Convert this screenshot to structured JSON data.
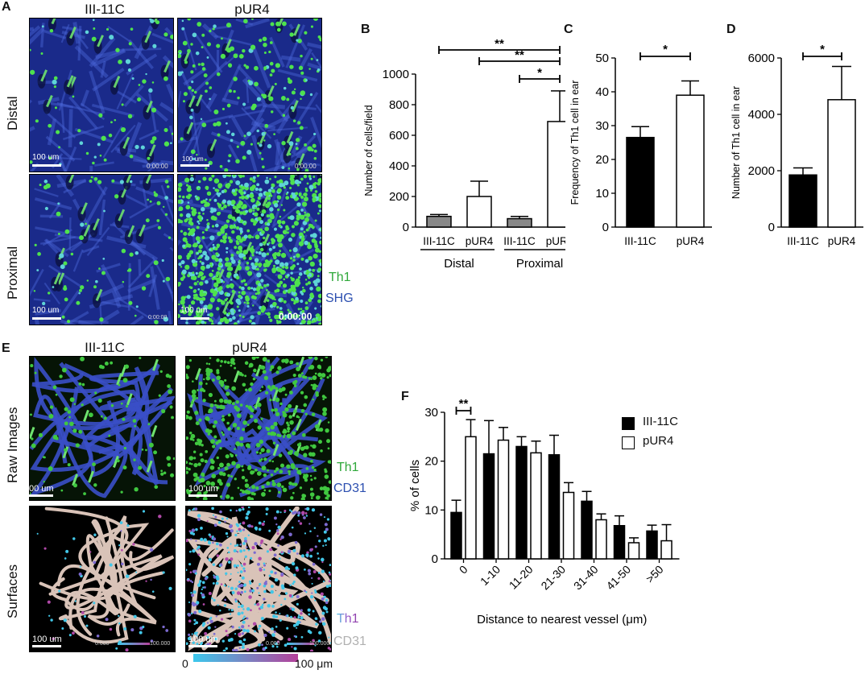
{
  "panel_labels": {
    "A": "A",
    "B": "B",
    "C": "C",
    "D": "D",
    "E": "E",
    "F": "F"
  },
  "panel_a": {
    "col_titles": [
      "III-11C",
      "pUR4"
    ],
    "row_titles": [
      "Distal",
      "Proximal"
    ],
    "scale_text": "100 um",
    "timestamp": "0:00:00",
    "channel_labels": [
      {
        "text": "Th1",
        "color": "#2fa83a"
      },
      {
        "text": "SHG",
        "color": "#2c4fb0"
      }
    ]
  },
  "panel_e": {
    "col_titles": [
      "III-11C",
      "pUR4"
    ],
    "row_titles": [
      "Raw Images",
      "Surfaces"
    ],
    "scale_texts": [
      "00 um",
      "100 um",
      "100 um",
      "100 um"
    ],
    "colorbar_small": {
      "min": "0.000",
      "max": "100.000"
    },
    "channel_labels_raw": [
      {
        "text": "Th1",
        "color": "#2fa83a"
      },
      {
        "text": "CD31",
        "color": "#2c4fb0"
      }
    ],
    "channel_labels_surface": [
      {
        "text": "Th1",
        "colors": [
          "#49c6e5",
          "#9b4fc8",
          "#8b3aa0"
        ]
      },
      {
        "text": "CD31",
        "color": "#b0b0b0"
      }
    ],
    "colorbar": {
      "min_label": "0",
      "max_label": "100 μm",
      "from": "#3cc8ec",
      "to": "#b5419a"
    }
  },
  "chart_data": [
    {
      "panel": "B",
      "type": "bar",
      "categories": [
        "III-11C",
        "pUR4",
        "III-11C",
        "pUR4"
      ],
      "groups": [
        "Distal",
        "Proximal"
      ],
      "values": [
        70,
        200,
        55,
        690
      ],
      "errors": [
        12,
        100,
        15,
        200
      ],
      "fills": [
        "#888888",
        "#ffffff",
        "#888888",
        "#ffffff"
      ],
      "ylabel": "Number of cells/field",
      "ylim": [
        0,
        1000
      ],
      "yticks": [
        0,
        200,
        400,
        600,
        800,
        1000
      ],
      "significance": [
        {
          "from": 0,
          "to": 3,
          "label": "**"
        },
        {
          "from": 1,
          "to": 3,
          "label": "**"
        },
        {
          "from": 2,
          "to": 3,
          "label": "*"
        }
      ]
    },
    {
      "panel": "C",
      "type": "bar",
      "categories": [
        "III-11C",
        "pUR4"
      ],
      "values": [
        26.5,
        39
      ],
      "errors": [
        3.2,
        4.2
      ],
      "fills": [
        "#000000",
        "#ffffff"
      ],
      "ylabel": "Frequency of Th1 cell in ear",
      "ylim": [
        0,
        50
      ],
      "yticks": [
        0,
        10,
        20,
        30,
        40,
        50
      ],
      "significance": [
        {
          "from": 0,
          "to": 1,
          "label": "*"
        }
      ]
    },
    {
      "panel": "D",
      "type": "bar",
      "categories": [
        "III-11C",
        "pUR4"
      ],
      "values": [
        1850,
        4520
      ],
      "errors": [
        250,
        1180
      ],
      "fills": [
        "#000000",
        "#ffffff"
      ],
      "ylabel": "Number of Th1 cell in ear",
      "ylim": [
        0,
        6000
      ],
      "yticks": [
        0,
        2000,
        4000,
        6000
      ],
      "significance": [
        {
          "from": 0,
          "to": 1,
          "label": "*"
        }
      ]
    },
    {
      "panel": "F",
      "type": "bar",
      "categories": [
        "0",
        "1-10",
        "11-20",
        "21-30",
        "31-40",
        "41-50",
        ">50"
      ],
      "series": [
        {
          "name": "III-11C",
          "fill": "#000000",
          "values": [
            9.5,
            21.5,
            23,
            21.3,
            11.8,
            6.8,
            5.7
          ],
          "errors": [
            2.5,
            6.8,
            2,
            4,
            2,
            2,
            1.2
          ]
        },
        {
          "name": "pUR4",
          "fill": "#ffffff",
          "values": [
            25,
            24.3,
            21.7,
            13.6,
            8,
            3.3,
            3.7
          ],
          "errors": [
            3.5,
            2.6,
            2.4,
            2,
            1.2,
            1,
            3.3
          ]
        }
      ],
      "xlabel": "Distance to nearest vessel (μm)",
      "ylabel": "% of cells",
      "ylim": [
        0,
        30
      ],
      "yticks": [
        0,
        10,
        20,
        30
      ],
      "significance": [
        {
          "category": 0,
          "label": "**"
        }
      ]
    }
  ]
}
